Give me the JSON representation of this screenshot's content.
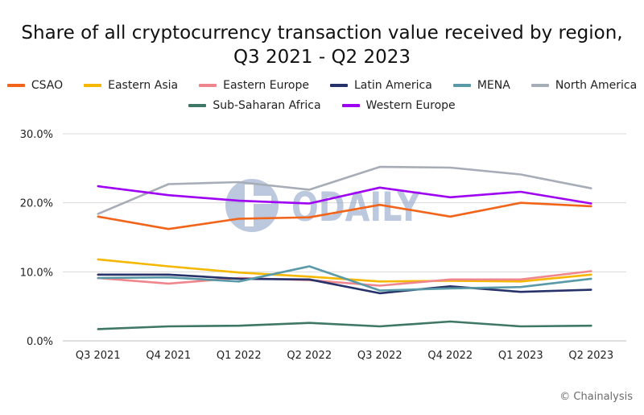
{
  "chart_data": {
    "type": "line",
    "title_line1": "Share of all cryptocurrency transaction value received by region,",
    "title_line2": "Q3 2021 - Q2 2023",
    "xlabel": "",
    "ylabel": "",
    "categories": [
      "Q3 2021",
      "Q4 2021",
      "Q1 2022",
      "Q2 2022",
      "Q3 2022",
      "Q4 2022",
      "Q1 2023",
      "Q2 2023"
    ],
    "ylim": [
      0,
      30
    ],
    "yticks": [
      0,
      10,
      20,
      30
    ],
    "ytick_labels": [
      "0.0%",
      "10.0%",
      "20.0%",
      "30.0%"
    ],
    "grid": true,
    "legend_placement": "top",
    "series": [
      {
        "name": "CSAO",
        "color": "#f26419",
        "values": [
          18.0,
          16.2,
          17.7,
          17.9,
          19.7,
          18.0,
          20.0,
          19.5
        ]
      },
      {
        "name": "Eastern Asia",
        "color": "#f5b700",
        "values": [
          11.8,
          10.8,
          9.9,
          9.3,
          8.6,
          8.7,
          8.6,
          9.6
        ]
      },
      {
        "name": "Eastern Europe",
        "color": "#f0868d",
        "values": [
          9.1,
          8.3,
          9.1,
          8.8,
          8.0,
          8.9,
          8.9,
          10.1
        ]
      },
      {
        "name": "Latin America",
        "color": "#27326b",
        "values": [
          9.6,
          9.6,
          9.0,
          8.9,
          6.9,
          7.9,
          7.1,
          7.4
        ]
      },
      {
        "name": "MENA",
        "color": "#5a9aa8",
        "values": [
          9.1,
          9.2,
          8.6,
          10.8,
          7.3,
          7.6,
          7.8,
          9.0
        ]
      },
      {
        "name": "North America",
        "color": "#a7adb7",
        "values": [
          18.4,
          22.7,
          23.0,
          21.9,
          25.2,
          25.1,
          24.1,
          22.1
        ]
      },
      {
        "name": "Sub-Saharan Africa",
        "color": "#3f7766",
        "values": [
          1.7,
          2.1,
          2.2,
          2.6,
          2.1,
          2.8,
          2.1,
          2.2
        ]
      },
      {
        "name": "Western Europe",
        "color": "#9d00f2",
        "values": [
          22.4,
          21.1,
          20.3,
          19.9,
          22.2,
          20.8,
          21.6,
          19.9
        ]
      }
    ]
  },
  "watermark": {
    "text": "ODAILY",
    "color": "#8fa5c9"
  },
  "credit": "© Chainalysis"
}
